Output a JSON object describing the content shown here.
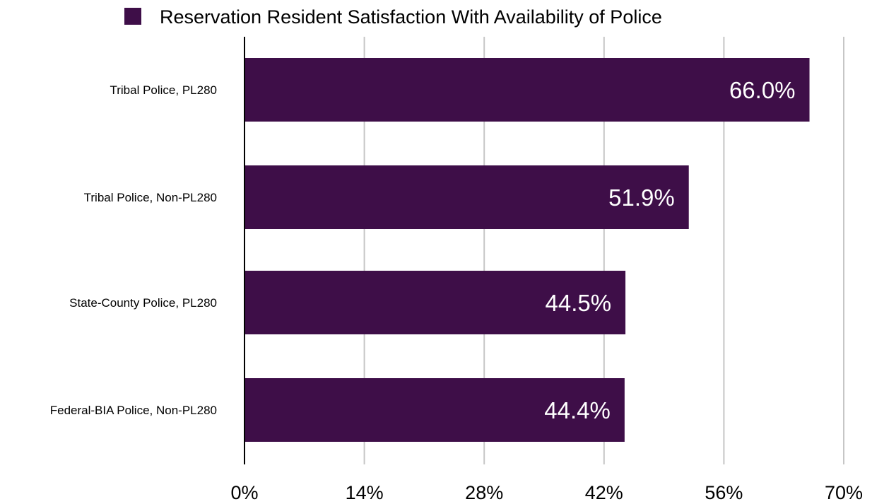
{
  "chart_data": {
    "type": "bar",
    "orientation": "horizontal",
    "categories": [
      "Tribal Police, PL280",
      "Tribal Police, Non-PL280",
      "State-County Police, PL280",
      "Federal-BIA Police, Non-PL280"
    ],
    "series": [
      {
        "name": "Reservation Resident Satisfaction With Availability of Police",
        "values": [
          66.0,
          51.9,
          44.5,
          44.4
        ],
        "data_labels": [
          "66.0%",
          "51.9%",
          "44.5%",
          "44.4%"
        ],
        "color": "#3e0e48"
      }
    ],
    "xlim": [
      0,
      70
    ],
    "x_ticks": [
      0,
      14,
      28,
      42,
      56,
      70
    ],
    "x_tick_labels": [
      "0%",
      "14%",
      "28%",
      "42%",
      "56%",
      "70%"
    ],
    "grid": true,
    "legend_position": "top"
  }
}
